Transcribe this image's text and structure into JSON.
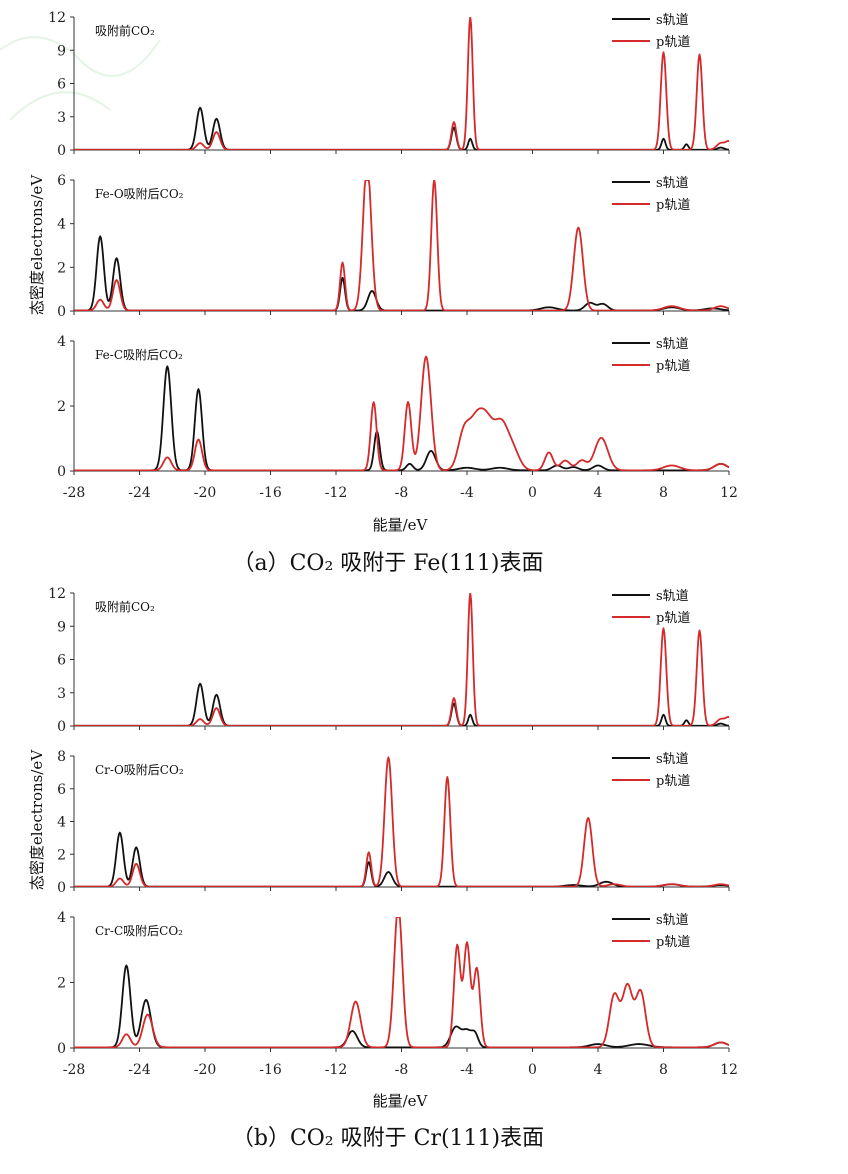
{
  "figure": {
    "ylabel": "态密度electrons/eV",
    "colors": {
      "s": "#111111",
      "p": "#d42a2a"
    }
  },
  "chart_data": [
    {
      "type": "line",
      "group": "a",
      "xlabel": "能量/eV",
      "caption": "（a）CO₂ 吸附于 Fe(111)表面",
      "xlim": [
        -28,
        12
      ],
      "xticks": [
        "-28",
        "-24",
        "-20",
        "-16",
        "-12",
        "-8",
        "-4",
        "0",
        "4",
        "8",
        "12"
      ],
      "panels": [
        {
          "label": "吸附前CO₂",
          "ylim": [
            0,
            12
          ],
          "yticks": [
            "0",
            "3",
            "6",
            "9",
            "12"
          ],
          "legend": [
            "s轨道",
            "p轨道"
          ],
          "series": [
            {
              "name": "s轨道",
              "baseline": 0.02,
              "peaks": [
                [
                  -20.3,
                  3.8,
                  0.22
                ],
                [
                  -19.3,
                  2.8,
                  0.22
                ],
                [
                  -4.8,
                  2.0,
                  0.15
                ],
                [
                  -3.8,
                  1.0,
                  0.12
                ],
                [
                  8.0,
                  1.0,
                  0.12
                ],
                [
                  9.4,
                  0.5,
                  0.12
                ],
                [
                  11.5,
                  0.2,
                  0.2
                ]
              ]
            },
            {
              "name": "p轨道",
              "baseline": 0.02,
              "peaks": [
                [
                  -20.3,
                  0.6,
                  0.22
                ],
                [
                  -19.3,
                  1.6,
                  0.22
                ],
                [
                  -4.8,
                  2.5,
                  0.15
                ],
                [
                  -3.8,
                  12.0,
                  0.15
                ],
                [
                  8.0,
                  8.8,
                  0.17
                ],
                [
                  10.2,
                  8.6,
                  0.17
                ],
                [
                  11.5,
                  0.6,
                  0.25
                ],
                [
                  12.0,
                  0.7,
                  0.2
                ]
              ]
            }
          ]
        },
        {
          "label": "Fe-O吸附后CO₂",
          "ylim": [
            0,
            6
          ],
          "yticks": [
            "0",
            "2",
            "4",
            "6"
          ],
          "legend": [
            "s轨道",
            "p轨道"
          ],
          "series": [
            {
              "name": "s轨道",
              "baseline": 0.02,
              "peaks": [
                [
                  -26.4,
                  3.4,
                  0.22
                ],
                [
                  -25.4,
                  2.4,
                  0.22
                ],
                [
                  -11.6,
                  1.5,
                  0.15
                ],
                [
                  -9.8,
                  0.9,
                  0.25
                ],
                [
                  1.0,
                  0.15,
                  0.5
                ],
                [
                  3.5,
                  0.35,
                  0.3
                ],
                [
                  4.3,
                  0.3,
                  0.3
                ],
                [
                  8.5,
                  0.15,
                  0.5
                ],
                [
                  11.0,
                  0.1,
                  0.5
                ]
              ]
            },
            {
              "name": "p轨道",
              "baseline": 0.02,
              "peaks": [
                [
                  -26.4,
                  0.5,
                  0.22
                ],
                [
                  -25.4,
                  1.4,
                  0.22
                ],
                [
                  -11.6,
                  2.2,
                  0.15
                ],
                [
                  -10.1,
                  6.8,
                  0.25
                ],
                [
                  -6.0,
                  6.0,
                  0.18
                ],
                [
                  2.8,
                  3.8,
                  0.28
                ],
                [
                  8.5,
                  0.2,
                  0.5
                ],
                [
                  11.5,
                  0.2,
                  0.4
                ]
              ]
            }
          ]
        },
        {
          "label": "Fe-C吸附后CO₂",
          "ylim": [
            0,
            4
          ],
          "yticks": [
            "0",
            "2",
            "4"
          ],
          "legend": [
            "s轨道",
            "p轨道"
          ],
          "series": [
            {
              "name": "s轨道",
              "baseline": 0.02,
              "peaks": [
                [
                  -22.3,
                  3.2,
                  0.24
                ],
                [
                  -20.4,
                  2.5,
                  0.22
                ],
                [
                  -9.5,
                  1.2,
                  0.17
                ],
                [
                  -7.5,
                  0.2,
                  0.2
                ],
                [
                  -6.2,
                  0.6,
                  0.28
                ],
                [
                  -4.0,
                  0.08,
                  0.5
                ],
                [
                  -2.0,
                  0.08,
                  0.5
                ],
                [
                  1.5,
                  0.15,
                  0.3
                ],
                [
                  2.5,
                  0.1,
                  0.3
                ],
                [
                  4.0,
                  0.15,
                  0.3
                ],
                [
                  11.5,
                  0.2,
                  0.4
                ]
              ]
            },
            {
              "name": "p轨道",
              "baseline": 0.02,
              "peaks": [
                [
                  -22.3,
                  0.4,
                  0.24
                ],
                [
                  -20.4,
                  0.95,
                  0.22
                ],
                [
                  -9.7,
                  2.1,
                  0.18
                ],
                [
                  -7.6,
                  2.1,
                  0.2
                ],
                [
                  -6.5,
                  3.5,
                  0.3
                ],
                [
                  -4.2,
                  1.1,
                  0.35
                ],
                [
                  -3.5,
                  1.2,
                  0.4
                ],
                [
                  -2.8,
                  1.45,
                  0.45
                ],
                [
                  -1.9,
                  1.25,
                  0.4
                ],
                [
                  -1.2,
                  0.6,
                  0.4
                ],
                [
                  1.0,
                  0.55,
                  0.25
                ],
                [
                  2.0,
                  0.3,
                  0.3
                ],
                [
                  3.0,
                  0.3,
                  0.3
                ],
                [
                  4.2,
                  1.0,
                  0.4
                ],
                [
                  8.5,
                  0.15,
                  0.5
                ],
                [
                  11.5,
                  0.2,
                  0.4
                ]
              ]
            }
          ]
        }
      ]
    },
    {
      "type": "line",
      "group": "b",
      "xlabel": "能量/eV",
      "caption": "（b）CO₂ 吸附于 Cr(111)表面",
      "xlim": [
        -28,
        12
      ],
      "xticks": [
        "-28",
        "-24",
        "-20",
        "-16",
        "-12",
        "-8",
        "-4",
        "0",
        "4",
        "8",
        "12"
      ],
      "panels": [
        {
          "label": "吸附前CO₂",
          "ylim": [
            0,
            12
          ],
          "yticks": [
            "0",
            "3",
            "6",
            "9",
            "12"
          ],
          "legend": [
            "s轨道",
            "p轨道"
          ],
          "series": [
            {
              "name": "s轨道",
              "baseline": 0.02,
              "peaks": [
                [
                  -20.3,
                  3.8,
                  0.22
                ],
                [
                  -19.3,
                  2.8,
                  0.22
                ],
                [
                  -4.8,
                  2.0,
                  0.15
                ],
                [
                  -3.8,
                  1.0,
                  0.12
                ],
                [
                  8.0,
                  1.0,
                  0.12
                ],
                [
                  9.4,
                  0.5,
                  0.12
                ],
                [
                  11.5,
                  0.2,
                  0.2
                ]
              ]
            },
            {
              "name": "p轨道",
              "baseline": 0.02,
              "peaks": [
                [
                  -20.3,
                  0.6,
                  0.22
                ],
                [
                  -19.3,
                  1.6,
                  0.22
                ],
                [
                  -4.8,
                  2.5,
                  0.15
                ],
                [
                  -3.8,
                  12.0,
                  0.15
                ],
                [
                  8.0,
                  8.8,
                  0.17
                ],
                [
                  10.2,
                  8.6,
                  0.17
                ],
                [
                  11.5,
                  0.6,
                  0.25
                ],
                [
                  12.0,
                  0.7,
                  0.2
                ]
              ]
            }
          ]
        },
        {
          "label": "Cr-O吸附后CO₂",
          "ylim": [
            0,
            8
          ],
          "yticks": [
            "0",
            "2",
            "4",
            "6",
            "8"
          ],
          "legend": [
            "s轨道",
            "p轨道"
          ],
          "series": [
            {
              "name": "s轨道",
              "baseline": 0.02,
              "peaks": [
                [
                  -25.2,
                  3.3,
                  0.22
                ],
                [
                  -24.2,
                  2.4,
                  0.22
                ],
                [
                  -10.0,
                  1.5,
                  0.15
                ],
                [
                  -8.8,
                  0.9,
                  0.25
                ],
                [
                  2.5,
                  0.1,
                  0.5
                ],
                [
                  4.5,
                  0.3,
                  0.4
                ],
                [
                  8.5,
                  0.15,
                  0.5
                ],
                [
                  11.5,
                  0.1,
                  0.5
                ]
              ]
            },
            {
              "name": "p轨道",
              "baseline": 0.02,
              "peaks": [
                [
                  -25.2,
                  0.5,
                  0.22
                ],
                [
                  -24.2,
                  1.4,
                  0.22
                ],
                [
                  -10.0,
                  2.1,
                  0.15
                ],
                [
                  -8.8,
                  7.9,
                  0.23
                ],
                [
                  -5.2,
                  6.7,
                  0.18
                ],
                [
                  3.4,
                  4.2,
                  0.25
                ],
                [
                  5.0,
                  0.15,
                  0.4
                ],
                [
                  8.5,
                  0.15,
                  0.5
                ],
                [
                  11.5,
                  0.15,
                  0.4
                ]
              ]
            }
          ]
        },
        {
          "label": "Cr-C吸附后CO₂",
          "ylim": [
            0,
            4
          ],
          "yticks": [
            "0",
            "2",
            "4"
          ],
          "legend": [
            "s轨道",
            "p轨道"
          ],
          "series": [
            {
              "name": "s轨道",
              "baseline": 0.02,
              "peaks": [
                [
                  -24.8,
                  2.5,
                  0.25
                ],
                [
                  -23.6,
                  1.45,
                  0.3
                ],
                [
                  -11.0,
                  0.5,
                  0.3
                ],
                [
                  -4.7,
                  0.6,
                  0.3
                ],
                [
                  -4.0,
                  0.5,
                  0.3
                ],
                [
                  -3.5,
                  0.35,
                  0.2
                ],
                [
                  4.0,
                  0.1,
                  0.5
                ],
                [
                  6.5,
                  0.1,
                  0.6
                ],
                [
                  11.5,
                  0.15,
                  0.4
                ]
              ]
            },
            {
              "name": "p轨道",
              "baseline": 0.02,
              "peaks": [
                [
                  -24.8,
                  0.4,
                  0.25
                ],
                [
                  -23.5,
                  1.0,
                  0.3
                ],
                [
                  -10.8,
                  1.4,
                  0.3
                ],
                [
                  -8.2,
                  4.3,
                  0.25
                ],
                [
                  -4.6,
                  3.1,
                  0.2
                ],
                [
                  -4.0,
                  3.15,
                  0.2
                ],
                [
                  -3.4,
                  2.4,
                  0.2
                ],
                [
                  5.0,
                  1.6,
                  0.3
                ],
                [
                  5.8,
                  1.85,
                  0.3
                ],
                [
                  6.6,
                  1.7,
                  0.3
                ],
                [
                  11.5,
                  0.15,
                  0.4
                ]
              ]
            }
          ]
        }
      ]
    }
  ]
}
